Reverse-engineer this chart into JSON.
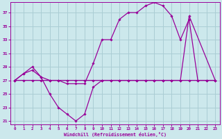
{
  "xlabel": "Windchill (Refroidissement éolien,°C)",
  "background_color": "#cce8ec",
  "grid_color": "#aacdd4",
  "line_color": "#990099",
  "xlim": [
    -0.5,
    23.5
  ],
  "ylim": [
    20.5,
    38.5
  ],
  "yticks": [
    21,
    23,
    25,
    27,
    29,
    31,
    33,
    35,
    37
  ],
  "xticks": [
    0,
    1,
    2,
    3,
    4,
    5,
    6,
    7,
    8,
    9,
    10,
    11,
    12,
    13,
    14,
    15,
    16,
    17,
    18,
    19,
    20,
    21,
    22,
    23
  ],
  "series1_x": [
    0,
    1,
    2,
    3,
    4,
    5,
    6,
    7,
    8,
    9,
    10,
    11,
    12,
    13,
    14,
    15,
    16,
    17,
    18,
    19,
    20,
    21,
    22,
    23
  ],
  "series1_y": [
    27,
    28,
    28.5,
    27.5,
    25,
    23,
    22,
    21,
    22,
    26,
    27,
    27,
    27,
    27,
    27,
    27,
    27,
    27,
    27,
    27,
    27,
    27,
    27,
    27
  ],
  "series2_x": [
    0,
    1,
    2,
    3,
    4,
    5,
    6,
    7,
    8,
    9,
    10,
    11,
    12,
    13,
    14,
    15,
    16,
    17,
    18,
    19,
    20,
    21,
    22,
    23
  ],
  "series2_y": [
    27,
    28,
    29,
    27.5,
    27,
    27,
    26.5,
    26.5,
    26.5,
    29.5,
    33,
    33,
    36,
    37,
    37,
    38,
    38.5,
    38,
    36.5,
    33,
    36,
    27,
    27,
    27
  ],
  "series3_x": [
    0,
    1,
    2,
    3,
    4,
    5,
    6,
    7,
    8,
    9,
    10,
    11,
    12,
    13,
    14,
    15,
    16,
    17,
    18,
    19,
    20,
    23
  ],
  "series3_y": [
    27,
    27,
    27,
    27,
    27,
    27,
    27,
    27,
    27,
    27,
    27,
    27,
    27,
    27,
    27,
    27,
    27,
    27,
    27,
    27,
    36.5,
    27
  ]
}
